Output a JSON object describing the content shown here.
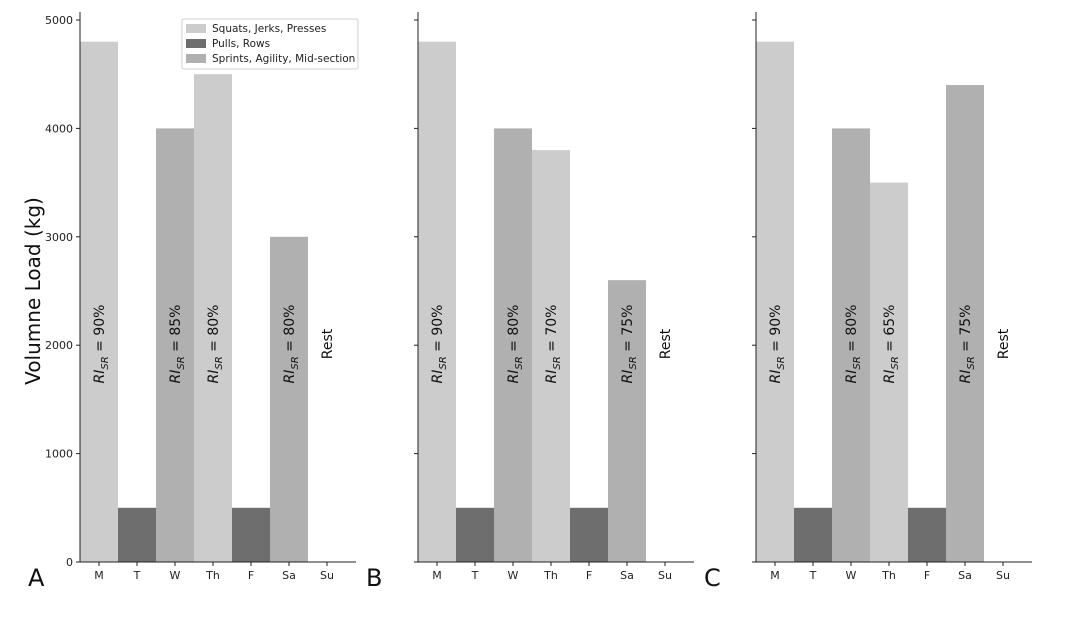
{
  "chart_data": {
    "type": "bar",
    "ylabel": "Volumne Load (kg)",
    "ylim": [
      0,
      5000
    ],
    "yticks": [
      "0",
      "1000",
      "2000",
      "3000",
      "4000",
      "5000"
    ],
    "categories": [
      "M",
      "T",
      "W",
      "Th",
      "F",
      "Sa",
      "Su"
    ],
    "legend": {
      "placement": "top",
      "entries": [
        {
          "label": "Squats, Jerks, Presses",
          "color": "#cccccc"
        },
        {
          "label": "Pulls, Rows",
          "color": "#6e6e6e"
        },
        {
          "label": "Sprints, Agility, Mid-section",
          "color": "#b0b0b0"
        }
      ]
    },
    "annotation_prefix": "RI",
    "annotation_subscript": "SR",
    "panels": [
      {
        "letter": "A",
        "values": [
          4800,
          500,
          4000,
          4500,
          500,
          3000,
          0
        ],
        "groups": [
          0,
          1,
          2,
          0,
          1,
          2,
          null
        ],
        "annotations": [
          "= 90%",
          "",
          "= 85%",
          "= 80%",
          "",
          "= 80%",
          "Rest"
        ]
      },
      {
        "letter": "B",
        "values": [
          4800,
          500,
          4000,
          3800,
          500,
          2600,
          0
        ],
        "groups": [
          0,
          1,
          2,
          0,
          1,
          2,
          null
        ],
        "annotations": [
          "= 90%",
          "",
          "= 80%",
          "= 70%",
          "",
          "= 75%",
          "Rest"
        ]
      },
      {
        "letter": "C",
        "values": [
          4800,
          500,
          4000,
          3500,
          500,
          4400,
          0
        ],
        "groups": [
          0,
          1,
          2,
          0,
          1,
          2,
          null
        ],
        "annotations": [
          "= 90%",
          "",
          "= 80%",
          "= 65%",
          "",
          "= 75%",
          "Rest"
        ]
      }
    ]
  }
}
